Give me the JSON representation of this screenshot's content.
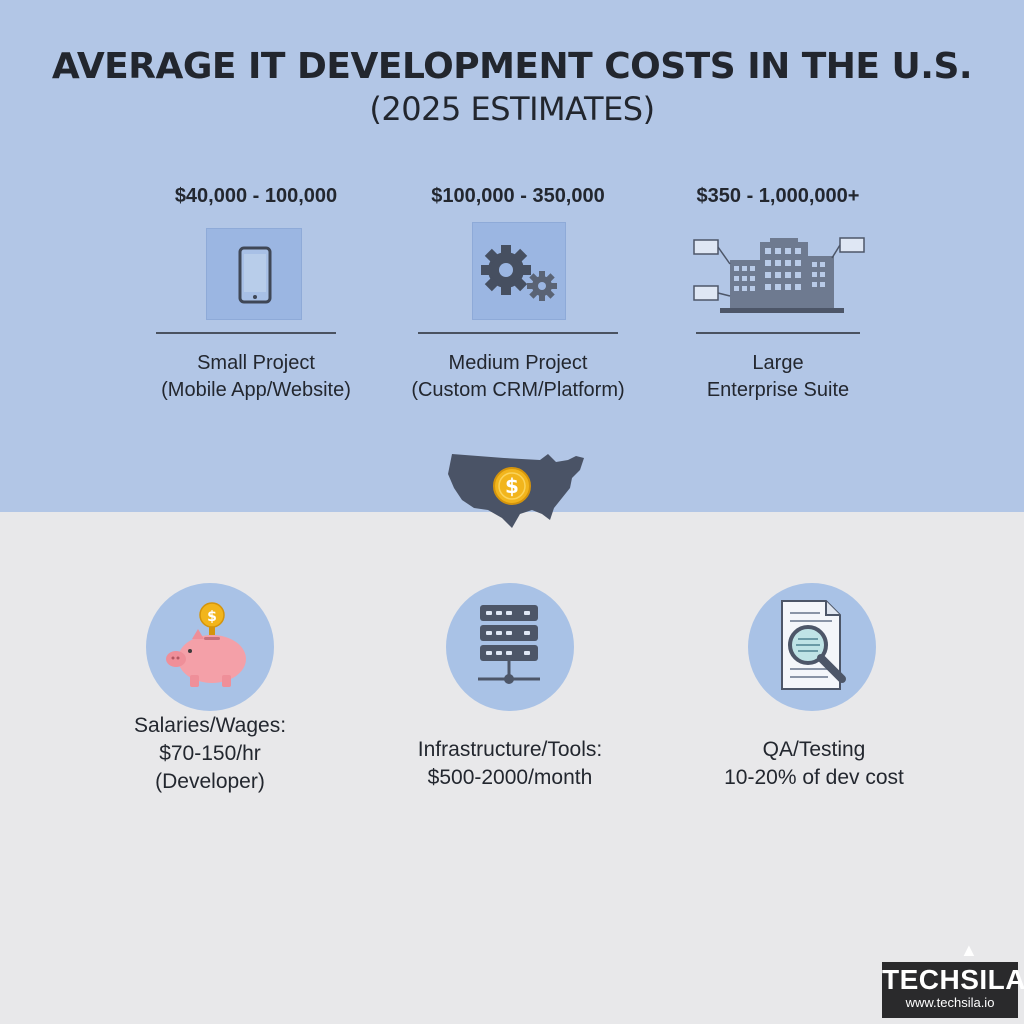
{
  "title": {
    "line1": "AVERAGE IT DEVELOPMENT COSTS IN THE U.S.",
    "line2": "(2025 ESTIMATES)"
  },
  "projects": [
    {
      "price": "$40,000 - 100,000",
      "label_line1": "Small Project",
      "label_line2": "(Mobile App/Website)",
      "icon": "smartphone-icon"
    },
    {
      "price": "$100,000 - 350,000",
      "label_line1": "Medium Project",
      "label_line2": "(Custom CRM/Platform)",
      "icon": "gears-icon"
    },
    {
      "price": "$350 - 1,000,000+",
      "label_line1": "Large",
      "label_line2": "Enterprise Suite",
      "icon": "office-buildings-icon"
    }
  ],
  "center_icon": "us-map-dollar-coin-icon",
  "factors": [
    {
      "line1": "Salaries/Wages:",
      "line2": "$70-150/hr",
      "line3": "(Developer)",
      "icon": "piggy-bank-icon"
    },
    {
      "line1": "Infrastructure/Tools:",
      "line2": "$500-2000/month",
      "icon": "server-rack-icon"
    },
    {
      "line1": "QA/Testing",
      "line2": "10-20% of dev cost",
      "icon": "document-magnifier-icon"
    }
  ],
  "brand": {
    "name": "TECHSILA",
    "url": "www.techsila.io"
  },
  "colors": {
    "top_band": "#b2c6e6",
    "bottom_band": "#e8e8ea",
    "text": "#23272f",
    "icon_dark": "#4d5668",
    "coin": "#f2b51c",
    "piggy": "#f4a0a8"
  }
}
